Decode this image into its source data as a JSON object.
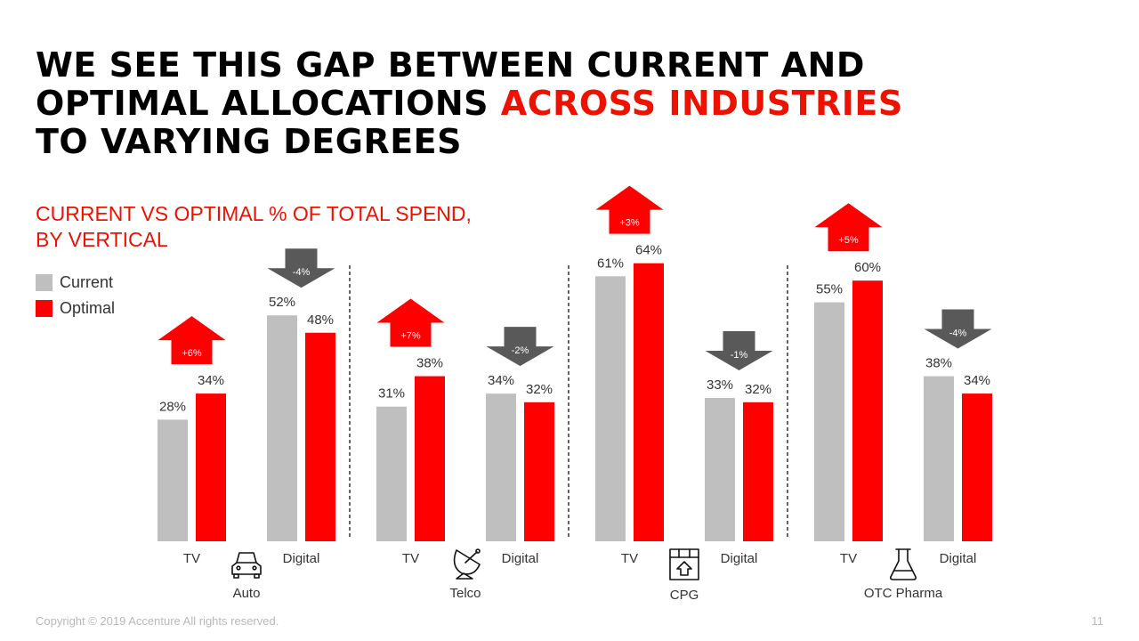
{
  "title": {
    "line1": "WE SEE THIS GAP BETWEEN CURRENT AND",
    "line2_pre": "OPTIMAL ALLOCATIONS ",
    "line2_highlight": "ACROSS INDUSTRIES",
    "line3": "TO VARYING DEGREES"
  },
  "colors": {
    "current": "#bfbfbf",
    "optimal": "#ff0000",
    "decrease_arrow": "#595959",
    "increase_arrow": "#ff0000"
  },
  "chart_data": {
    "type": "bar",
    "title": "CURRENT VS OPTIMAL % OF TOTAL SPEND, BY VERTICAL",
    "title_line1": "CURRENT VS OPTIMAL % OF TOTAL SPEND,",
    "title_line2": "BY VERTICAL",
    "legend": [
      "Current",
      "Optimal"
    ],
    "legend_position": "left",
    "verticals": [
      {
        "name": "Auto",
        "icon": "car-icon",
        "groups": [
          {
            "category": "TV",
            "current": 28,
            "optimal": 34,
            "current_label": "28%",
            "optimal_label": "34%",
            "delta": "+6%"
          },
          {
            "category": "Digital",
            "current": 52,
            "optimal": 48,
            "current_label": "52%",
            "optimal_label": "48%",
            "delta": "-4%"
          }
        ]
      },
      {
        "name": "Telco",
        "icon": "satellite-dish-icon",
        "groups": [
          {
            "category": "TV",
            "current": 31,
            "optimal": 38,
            "current_label": "31%",
            "optimal_label": "38%",
            "delta": "+7%"
          },
          {
            "category": "Digital",
            "current": 34,
            "optimal": 32,
            "current_label": "34%",
            "optimal_label": "32%",
            "delta": "-2%"
          }
        ]
      },
      {
        "name": "CPG",
        "icon": "package-icon",
        "groups": [
          {
            "category": "TV",
            "current": 61,
            "optimal": 64,
            "current_label": "61%",
            "optimal_label": "64%",
            "delta": "+3%"
          },
          {
            "category": "Digital",
            "current": 33,
            "optimal": 32,
            "current_label": "33%",
            "optimal_label": "32%",
            "delta": "-1%"
          }
        ]
      },
      {
        "name": "OTC Pharma",
        "icon": "flask-icon",
        "groups": [
          {
            "category": "TV",
            "current": 55,
            "optimal": 60,
            "current_label": "55%",
            "optimal_label": "60%",
            "delta": "+5%"
          },
          {
            "category": "Digital",
            "current": 38,
            "optimal": 34,
            "current_label": "38%",
            "optimal_label": "34%",
            "delta": "-4%"
          }
        ]
      }
    ]
  },
  "footer": {
    "copyright": "Copyright © 2019 Accenture All rights reserved.",
    "page_number": "11"
  }
}
